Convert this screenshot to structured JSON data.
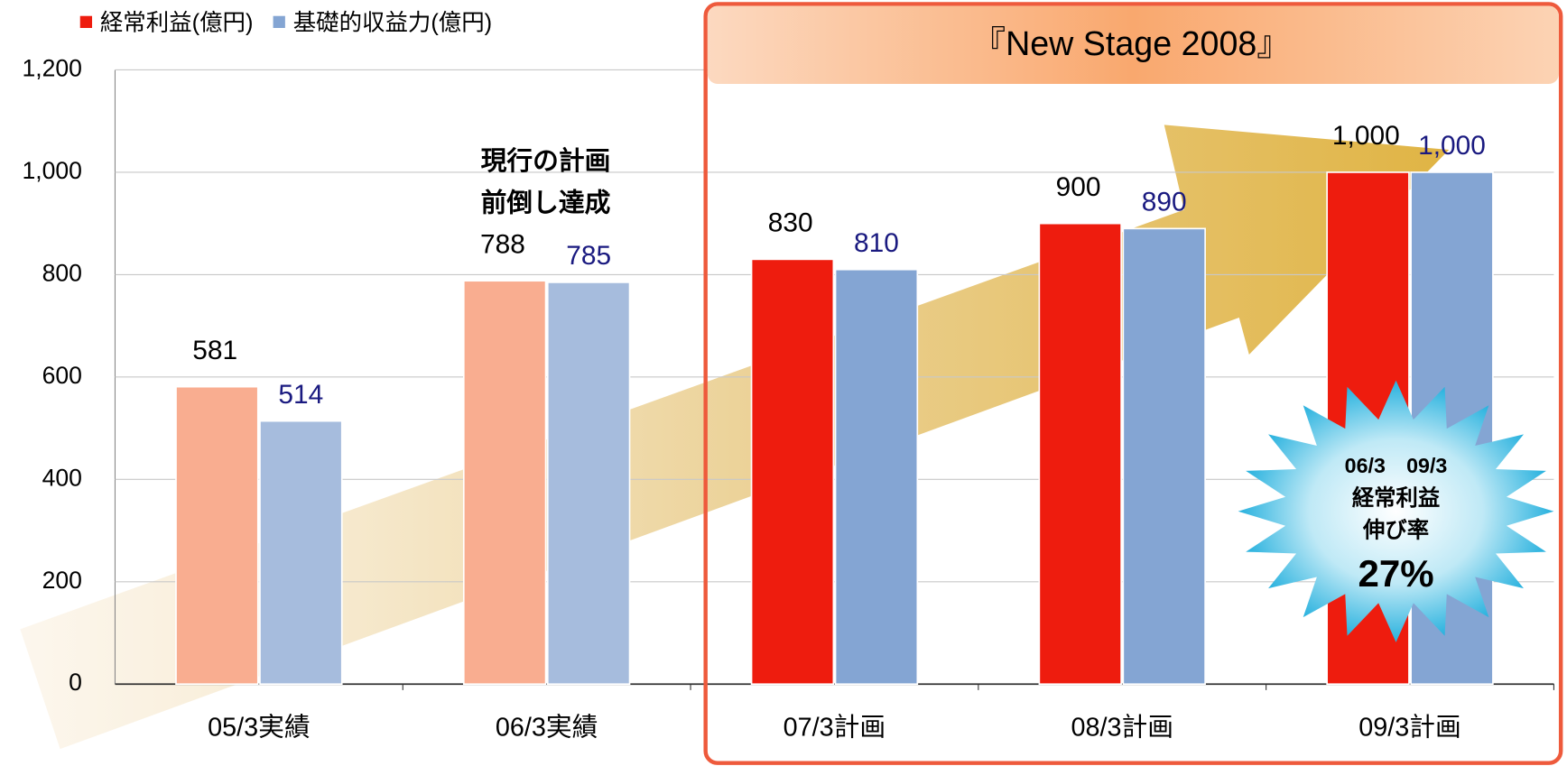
{
  "chart_data": {
    "type": "bar",
    "categories": [
      "05/3実績",
      "06/3実績",
      "07/3計画",
      "08/3計画",
      "09/3計画"
    ],
    "series": [
      {
        "name": "経常利益(億円)",
        "color": "#ee1c0e",
        "colors": [
          "#f9ad90",
          "#f9ad90",
          "#ee1c0e",
          "#ee1c0e",
          "#ee1c0e"
        ],
        "label_color": "#000000",
        "values": [
          581,
          788,
          830,
          900,
          1000
        ],
        "value_labels": [
          "581",
          "788",
          "830",
          "900",
          "1,000"
        ]
      },
      {
        "name": "基礎的収益力(億円)",
        "color": "#84a5d3",
        "colors": [
          "#a6bcdd",
          "#a6bcdd",
          "#84a5d3",
          "#84a5d3",
          "#84a5d3"
        ],
        "label_color": "#1a1a80",
        "values": [
          514,
          785,
          810,
          890,
          1000
        ],
        "value_labels": [
          "514",
          "785",
          "810",
          "890",
          "1,000"
        ]
      }
    ],
    "ylim": [
      0,
      1200
    ],
    "yticks": [
      0,
      200,
      400,
      600,
      800,
      {
        "value": 1000,
        "label": "1,000"
      },
      {
        "value": 1200,
        "label": "1,200"
      }
    ],
    "grid": true,
    "legend": "top-left",
    "annotations": {
      "plan_title": "『New Stage 2008』",
      "early_achievement": [
        "現行の計画",
        "前倒し達成"
      ],
      "growth": {
        "period": "06/3　09/3",
        "metric": "経常利益",
        "caption": "伸び率",
        "rate": "27%"
      }
    }
  }
}
